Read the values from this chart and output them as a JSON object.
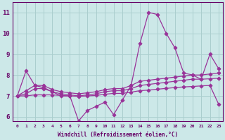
{
  "xlabel": "Windchill (Refroidissement éolien,°C)",
  "ylabel": "",
  "bg_color": "#cce8e8",
  "line_color": "#993399",
  "grid_color": "#aacece",
  "axis_color": "#660066",
  "xlim": [
    -0.5,
    23.5
  ],
  "ylim": [
    5.8,
    11.5
  ],
  "yticks": [
    6,
    7,
    8,
    9,
    10,
    11
  ],
  "xtick_labels": [
    "0",
    "1",
    "2",
    "3",
    "4",
    "5",
    "6",
    "7",
    "8",
    "9",
    "10",
    "11",
    "12",
    "13",
    "14",
    "15",
    "16",
    "17",
    "18",
    "19",
    "20",
    "21",
    "22",
    "23"
  ],
  "series": [
    {
      "x": [
        0,
        1,
        2,
        3,
        4,
        5,
        6,
        7,
        8,
        9,
        10,
        11,
        12,
        13,
        14,
        15,
        16,
        17,
        18,
        19,
        20,
        21,
        22,
        23
      ],
      "y": [
        7.0,
        8.2,
        7.5,
        7.4,
        7.2,
        7.0,
        7.0,
        5.8,
        6.3,
        6.5,
        6.7,
        6.1,
        6.8,
        7.5,
        9.5,
        11.0,
        10.9,
        10.0,
        9.3,
        8.1,
        8.0,
        7.8,
        9.0,
        8.3
      ]
    },
    {
      "x": [
        0,
        1,
        2,
        3,
        4,
        5,
        6,
        7,
        8,
        9,
        10,
        11,
        12,
        13,
        14,
        15,
        16,
        17,
        18,
        19,
        20,
        21,
        22,
        23
      ],
      "y": [
        7.0,
        7.25,
        7.5,
        7.5,
        7.3,
        7.2,
        7.15,
        7.1,
        7.15,
        7.2,
        7.3,
        7.35,
        7.35,
        7.5,
        7.7,
        7.75,
        7.8,
        7.85,
        7.9,
        7.95,
        8.0,
        8.0,
        8.05,
        8.1
      ]
    },
    {
      "x": [
        0,
        1,
        2,
        3,
        4,
        5,
        6,
        7,
        8,
        9,
        10,
        11,
        12,
        13,
        14,
        15,
        16,
        17,
        18,
        19,
        20,
        21,
        22,
        23
      ],
      "y": [
        7.0,
        7.1,
        7.35,
        7.35,
        7.2,
        7.1,
        7.05,
        7.0,
        7.05,
        7.1,
        7.2,
        7.25,
        7.25,
        7.35,
        7.5,
        7.55,
        7.6,
        7.65,
        7.7,
        7.75,
        7.8,
        7.8,
        7.82,
        7.85
      ]
    },
    {
      "x": [
        0,
        1,
        2,
        3,
        4,
        5,
        6,
        7,
        8,
        9,
        10,
        11,
        12,
        13,
        14,
        15,
        16,
        17,
        18,
        19,
        20,
        21,
        22,
        23
      ],
      "y": [
        7.0,
        7.0,
        7.05,
        7.05,
        7.05,
        7.02,
        7.0,
        6.98,
        7.0,
        7.02,
        7.08,
        7.12,
        7.12,
        7.18,
        7.25,
        7.28,
        7.32,
        7.36,
        7.4,
        7.43,
        7.45,
        7.48,
        7.5,
        6.6
      ]
    }
  ],
  "marker": "D",
  "markersize": 2.5,
  "linewidth": 0.9
}
